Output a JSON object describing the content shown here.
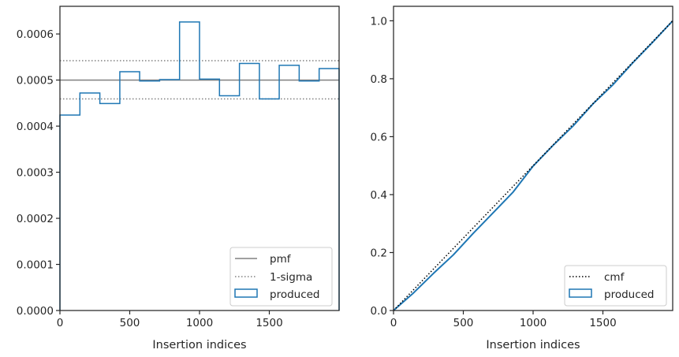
{
  "chart_data": [
    {
      "type": "histogram-step",
      "xlabel": "Insertion indices",
      "ylabel": "",
      "xlim": [
        0,
        2000
      ],
      "ylim": [
        0,
        0.00066
      ],
      "xticks": [
        0,
        500,
        1000,
        1500
      ],
      "yticks": [
        0,
        0.0001,
        0.0002,
        0.0003,
        0.0004,
        0.0005,
        0.0006
      ],
      "ytick_labels": [
        "0.0000",
        "0.0001",
        "0.0002",
        "0.0003",
        "0.0004",
        "0.0005",
        "0.0006"
      ],
      "grid": false,
      "legend_position": "bottom-right",
      "bin_edges": [
        0,
        143,
        286,
        429,
        571,
        714,
        857,
        1000,
        1143,
        1286,
        1429,
        1571,
        1714,
        1857,
        2000
      ],
      "series": [
        {
          "name": "produced",
          "color": "#1f77b4",
          "values": [
            0.000424,
            0.000472,
            0.000449,
            0.000518,
            0.000498,
            0.000501,
            0.000626,
            0.000502,
            0.000466,
            0.000536,
            0.000459,
            0.000532,
            0.000498,
            0.000525
          ]
        }
      ],
      "reference_lines": [
        {
          "name": "pmf",
          "y": 0.0005,
          "style": "solid",
          "color": "#808080"
        },
        {
          "name": "1-sigma",
          "y": [
            0.000542,
            0.000459
          ],
          "style": "dotted",
          "color": "#808080"
        }
      ]
    },
    {
      "type": "line",
      "xlabel": "Insertion indices",
      "ylabel": "",
      "xlim": [
        0,
        2000
      ],
      "ylim": [
        0,
        1.05
      ],
      "xticks": [
        0,
        500,
        1000,
        1500
      ],
      "yticks": [
        0,
        0.2,
        0.4,
        0.6,
        0.8,
        1.0
      ],
      "ytick_labels": [
        "0.0",
        "0.2",
        "0.4",
        "0.6",
        "0.8",
        "1.0"
      ],
      "grid": false,
      "legend_position": "bottom-right",
      "series": [
        {
          "name": "cmf",
          "style": "dotted",
          "color": "#000000",
          "x": [
            0,
            2000
          ],
          "y": [
            0,
            1.0
          ]
        },
        {
          "name": "produced",
          "style": "solid",
          "color": "#1f77b4",
          "x": [
            0,
            143,
            286,
            429,
            571,
            714,
            857,
            1000,
            1143,
            1286,
            1429,
            1571,
            1714,
            1857,
            2000
          ],
          "y": [
            0,
            0.0606,
            0.1281,
            0.1923,
            0.2663,
            0.3374,
            0.409,
            0.4984,
            0.5701,
            0.6367,
            0.7133,
            0.7789,
            0.8549,
            0.9261,
            1.0
          ]
        }
      ]
    }
  ],
  "legends": [
    {
      "entries": [
        {
          "label": "pmf"
        },
        {
          "label": "1-sigma"
        },
        {
          "label": "produced"
        }
      ]
    },
    {
      "entries": [
        {
          "label": "cmf"
        },
        {
          "label": "produced"
        }
      ]
    }
  ]
}
